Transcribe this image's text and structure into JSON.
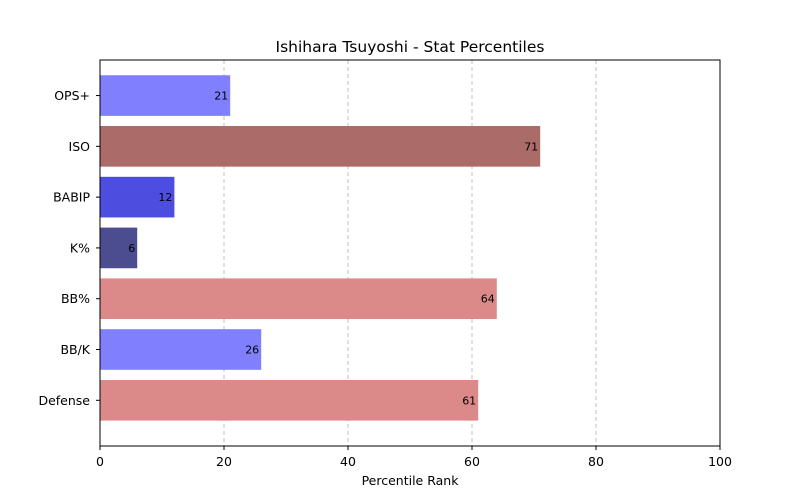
{
  "chart_data": {
    "type": "bar",
    "orientation": "horizontal",
    "title": "Ishihara Tsuyoshi - Stat Percentiles",
    "xlabel": "Percentile Rank",
    "ylabel": "",
    "xlim": [
      0,
      100
    ],
    "xticks": [
      0,
      20,
      40,
      60,
      80,
      100
    ],
    "grid": "x-dashed",
    "categories": [
      "OPS+",
      "ISO",
      "BABIP",
      "K%",
      "BB%",
      "BB/K",
      "Defense"
    ],
    "values": [
      21,
      71,
      12,
      6,
      64,
      26,
      61
    ],
    "colors": [
      "#8080ff",
      "#ab6b69",
      "#4d4ddf",
      "#4c4c90",
      "#dc8989",
      "#8080ff",
      "#dc8989"
    ]
  }
}
